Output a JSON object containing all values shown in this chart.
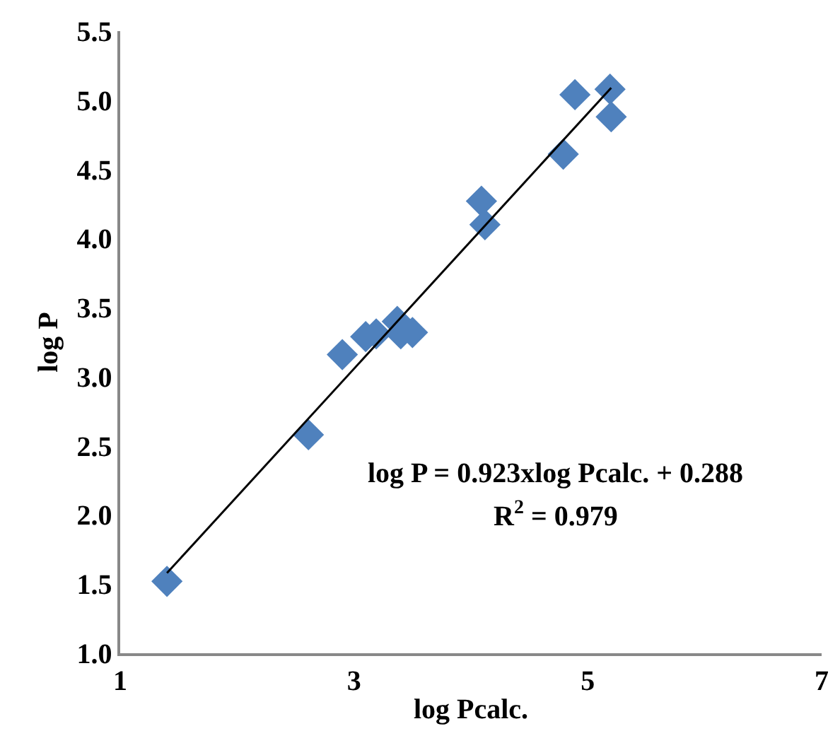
{
  "chart_data": {
    "type": "scatter",
    "xlabel": "log Pcalc.",
    "ylabel": "log P",
    "xlim": [
      1,
      7
    ],
    "xticks": [
      1,
      3,
      5,
      7
    ],
    "ylim": [
      1.0,
      5.5
    ],
    "yticks": [
      {
        "value": 1.0,
        "label": "1.0"
      },
      {
        "value": 1.5,
        "label": "1.5"
      },
      {
        "value": 2.0,
        "label": "2.0"
      },
      {
        "value": 2.5,
        "label": "2.5"
      },
      {
        "value": 3.0,
        "label": "3.0"
      },
      {
        "value": 3.5,
        "label": "3.5"
      },
      {
        "value": 4.0,
        "label": "4.0"
      },
      {
        "value": 4.5,
        "label": "4.5"
      },
      {
        "value": 5.0,
        "label": "5.0"
      },
      {
        "value": 5.5,
        "label": "5.5"
      }
    ],
    "series": [
      {
        "marker": "diamond",
        "color": "#4f81bd",
        "x": [
          1.4,
          2.61,
          2.9,
          3.1,
          3.19,
          3.37,
          3.4,
          3.5,
          4.09,
          4.12,
          4.79,
          4.89,
          5.19,
          5.2
        ],
        "values": [
          1.52,
          2.58,
          3.16,
          3.29,
          3.31,
          3.4,
          3.31,
          3.32,
          4.27,
          4.1,
          4.61,
          5.04,
          5.08,
          4.88
        ]
      },
      {
        "type": "line",
        "color": "#000000",
        "x": [
          1.4,
          5.2
        ],
        "values": [
          1.58,
          5.09
        ]
      }
    ],
    "annotations": [
      "log P = 0.923xlog Pcalc. + 0.288",
      "R$^{2}$ = 0.979"
    ]
  }
}
